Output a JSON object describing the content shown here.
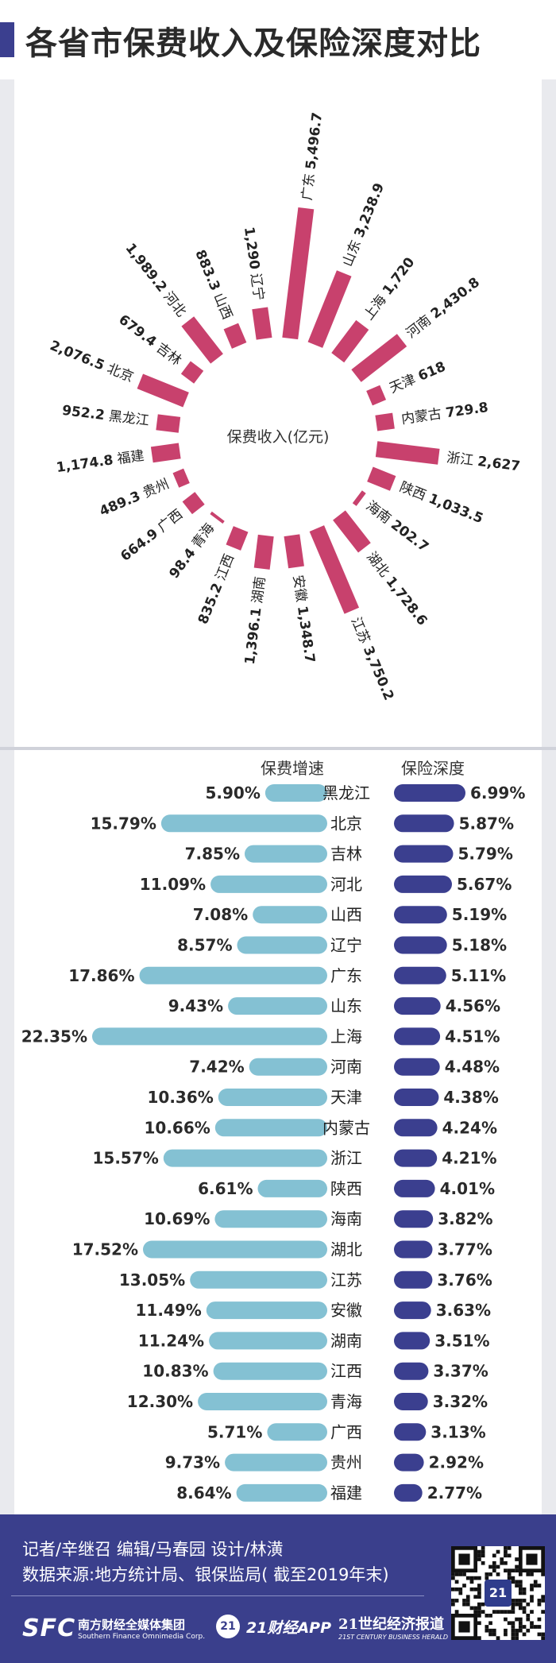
{
  "header": {
    "title": "各省市保费收入及保险深度对比"
  },
  "chart_data": [
    {
      "type": "radial-bar",
      "center_label": "保费收入(亿元)",
      "color": "#c8416d",
      "categories": [
        "广东",
        "山东",
        "上海",
        "河南",
        "天津",
        "内蒙古",
        "浙江",
        "陕西",
        "海南",
        "湖北",
        "江苏",
        "安徽",
        "湖南",
        "江西",
        "青海",
        "广西",
        "贵州",
        "福建",
        "黑龙江",
        "北京",
        "吉林",
        "河北",
        "山西",
        "辽宁"
      ],
      "values": [
        5496.7,
        3238.9,
        1720,
        2430.8,
        618,
        729.8,
        2627,
        1033.5,
        202.7,
        1728.6,
        3750.2,
        1348.7,
        1396.1,
        835.2,
        98.4,
        664.9,
        489.3,
        1174.8,
        952.2,
        2076.5,
        679.4,
        1989.2,
        883.3,
        1290
      ],
      "value_labels": [
        "5,496.7",
        "3,238.9",
        "1,720",
        "2,430.8",
        "618",
        "729.8",
        "2,627",
        "1,033.5",
        "202.7",
        "1,728.6",
        "3,750.2",
        "1,348.7",
        "1,396.1",
        "835.2",
        "98.4",
        "664.9",
        "489.3",
        "1,174.8",
        "952.2",
        "2,076.5",
        "679.4",
        "1,989.2",
        "883.3",
        "1,290"
      ]
    },
    {
      "type": "bar",
      "orientation": "horizontal-diverging",
      "left_header": "保费增速",
      "right_header": "保险深度",
      "categories": [
        "黑龙江",
        "北京",
        "吉林",
        "河北",
        "山西",
        "辽宁",
        "广东",
        "山东",
        "上海",
        "河南",
        "天津",
        "内蒙古",
        "浙江",
        "陕西",
        "海南",
        "湖北",
        "江苏",
        "安徽",
        "湖南",
        "江西",
        "青海",
        "广西",
        "贵州",
        "福建"
      ],
      "series": [
        {
          "name": "保费增速",
          "color": "#84c1d3",
          "values": [
            5.9,
            15.79,
            7.85,
            11.09,
            7.08,
            8.57,
            17.86,
            9.43,
            22.35,
            7.42,
            10.36,
            10.66,
            15.57,
            6.61,
            10.69,
            17.52,
            13.05,
            11.49,
            11.24,
            10.83,
            12.3,
            5.71,
            9.73,
            8.64
          ],
          "labels": [
            "5.90%",
            "15.79%",
            "7.85%",
            "11.09%",
            "7.08%",
            "8.57%",
            "17.86%",
            "9.43%",
            "22.35%",
            "7.42%",
            "10.36%",
            "10.66%",
            "15.57%",
            "6.61%",
            "10.69%",
            "17.52%",
            "13.05%",
            "11.49%",
            "11.24%",
            "10.83%",
            "12.30%",
            "5.71%",
            "9.73%",
            "8.64%"
          ]
        },
        {
          "name": "保险深度",
          "color": "#3b3f8f",
          "values": [
            6.99,
            5.87,
            5.79,
            5.67,
            5.19,
            5.18,
            5.11,
            4.56,
            4.51,
            4.48,
            4.38,
            4.24,
            4.21,
            4.01,
            3.82,
            3.77,
            3.76,
            3.63,
            3.51,
            3.37,
            3.32,
            3.13,
            2.92,
            2.77
          ],
          "labels": [
            "6.99%",
            "5.87%",
            "5.79%",
            "5.67%",
            "5.19%",
            "5.18%",
            "5.11%",
            "4.56%",
            "4.51%",
            "4.48%",
            "4.38%",
            "4.24%",
            "4.21%",
            "4.01%",
            "3.82%",
            "3.77%",
            "3.76%",
            "3.63%",
            "3.51%",
            "3.37%",
            "3.32%",
            "3.13%",
            "2.92%",
            "2.77%"
          ]
        }
      ]
    }
  ],
  "footer": {
    "credits_line1": "记者/辛继召  编辑/马春园  设计/林潢",
    "credits_line2": "数据来源:地方统计局、银保监局( 截至2019年末)",
    "sfc_logo": "SFC",
    "sfc_cn": "南方财经全媒体集团",
    "sfc_en": "Southern Finance Omnimedia Corp.",
    "app_badge": "21",
    "app_name": "21财经APP",
    "herald_cn": "21世纪经济报道",
    "herald_en": "21ST CENTURY BUSINESS HERALD",
    "qr_badge": "21"
  }
}
